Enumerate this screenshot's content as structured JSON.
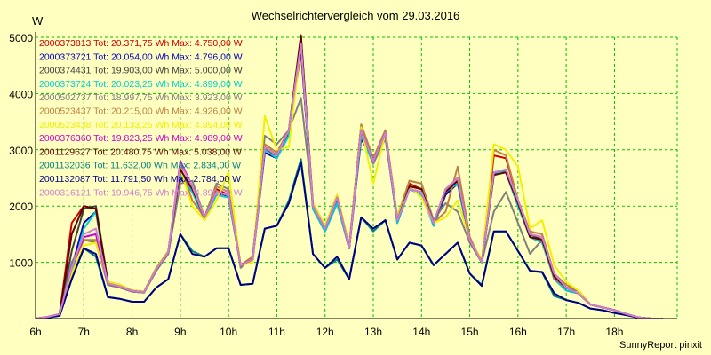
{
  "chart_data": {
    "type": "line",
    "title": "Wechselrichtervergleich vom 29.03.2016",
    "ylabel": "W",
    "xlabel": "",
    "ylim": [
      0,
      5000
    ],
    "xlim": [
      6,
      19.3
    ],
    "grid": true,
    "legend_position": "top-left",
    "y_ticks": [
      1000,
      2000,
      3000,
      4000,
      5000
    ],
    "x_ticks": [
      {
        "value": 6,
        "label": "6h"
      },
      {
        "value": 7,
        "label": "7h"
      },
      {
        "value": 8,
        "label": "8h"
      },
      {
        "value": 9,
        "label": "9h"
      },
      {
        "value": 10,
        "label": "10h"
      },
      {
        "value": 11,
        "label": "11h"
      },
      {
        "value": 12,
        "label": "12h"
      },
      {
        "value": 13,
        "label": "13h"
      },
      {
        "value": 14,
        "label": "14h"
      },
      {
        "value": 15,
        "label": "15h"
      },
      {
        "value": 16,
        "label": "16h"
      },
      {
        "value": 17,
        "label": "17h"
      },
      {
        "value": 18,
        "label": "18h"
      }
    ],
    "x": [
      6,
      6.25,
      6.5,
      6.75,
      7,
      7.25,
      7.5,
      7.75,
      8,
      8.25,
      8.5,
      8.75,
      9,
      9.25,
      9.5,
      9.75,
      10,
      10.25,
      10.5,
      10.75,
      11,
      11.25,
      11.5,
      11.75,
      12,
      12.25,
      12.5,
      12.75,
      13,
      13.25,
      13.5,
      13.75,
      14,
      14.25,
      14.5,
      14.75,
      15,
      15.25,
      15.5,
      15.75,
      16,
      16.25,
      16.5,
      16.75,
      17,
      17.25,
      17.5,
      17.75,
      18,
      18.25,
      18.5,
      18.75,
      19
    ],
    "series": [
      {
        "id": "s1",
        "name": "2000373813 Tot: 20.371,75 Wh Max: 4.750,00 W",
        "color": "#d00000",
        "values": [
          0,
          30,
          80,
          1700,
          2000,
          1950,
          600,
          550,
          480,
          480,
          900,
          1200,
          2600,
          2300,
          1800,
          2300,
          2200,
          950,
          1100,
          3000,
          2900,
          3300,
          4750,
          2000,
          1600,
          2100,
          1250,
          3350,
          2800,
          3300,
          1750,
          2400,
          2300,
          1700,
          2300,
          2500,
          1400,
          1000,
          2900,
          2850,
          2100,
          1500,
          1400,
          700,
          550,
          500,
          250,
          200,
          150,
          80,
          20,
          0,
          0
        ]
      },
      {
        "id": "s2",
        "name": "2000373721 Tot: 20.054,00 Wh Max: 4.796,00 W",
        "color": "#0000c0",
        "values": [
          0,
          20,
          60,
          900,
          1700,
          1900,
          650,
          600,
          500,
          480,
          850,
          1150,
          2500,
          2250,
          1800,
          2250,
          2150,
          950,
          1050,
          2950,
          2850,
          3300,
          4796,
          1950,
          1550,
          2050,
          1250,
          3200,
          2800,
          3250,
          1700,
          2300,
          2250,
          1650,
          2200,
          2400,
          1350,
          1000,
          2600,
          2600,
          2000,
          1450,
          1350,
          750,
          500,
          450,
          250,
          200,
          150,
          80,
          20,
          0,
          0
        ]
      },
      {
        "id": "s3",
        "name": "2000374431 Tot: 19.903,00 Wh Max: 5.000,00 W",
        "color": "#404040",
        "values": [
          0,
          20,
          70,
          1200,
          1950,
          2000,
          650,
          580,
          500,
          470,
          850,
          1150,
          2600,
          2300,
          1800,
          2250,
          2200,
          950,
          1050,
          3050,
          2900,
          3300,
          5000,
          2000,
          1600,
          2100,
          1250,
          3300,
          2800,
          3300,
          1750,
          2300,
          2250,
          1700,
          2250,
          2450,
          1400,
          1000,
          2550,
          2650,
          2050,
          1500,
          1400,
          750,
          550,
          500,
          250,
          200,
          150,
          80,
          20,
          0,
          0
        ]
      },
      {
        "id": "s4",
        "name": "2000373724 Tot: 20.023,25 Wh Max: 4.899,00 W",
        "color": "#00d0d0",
        "values": [
          0,
          15,
          50,
          800,
          1600,
          1900,
          600,
          560,
          480,
          460,
          850,
          1150,
          2550,
          2250,
          1750,
          2200,
          2150,
          950,
          1050,
          3000,
          2850,
          3250,
          4899,
          1950,
          1550,
          2050,
          1250,
          3250,
          2750,
          3250,
          1700,
          2300,
          2200,
          1650,
          2250,
          2400,
          1350,
          1000,
          2600,
          2600,
          2000,
          1450,
          1350,
          700,
          500,
          450,
          250,
          200,
          150,
          80,
          20,
          0,
          0
        ]
      },
      {
        "id": "s5",
        "name": "2000502737 Tot: 18.997,75 Wh Max: 3.923,00 W",
        "color": "#808080",
        "values": [
          0,
          30,
          70,
          1000,
          1400,
          1350,
          600,
          550,
          480,
          460,
          850,
          1150,
          2400,
          2450,
          1800,
          2400,
          2300,
          900,
          1100,
          3250,
          3100,
          3350,
          3923,
          2050,
          1650,
          2150,
          1300,
          3450,
          2750,
          3200,
          1800,
          2450,
          2400,
          1750,
          2050,
          1900,
          1350,
          1000,
          1900,
          2250,
          1700,
          1150,
          1400,
          700,
          550,
          500,
          250,
          200,
          150,
          80,
          20,
          0,
          0
        ]
      },
      {
        "id": "s6",
        "name": "2000523437 Tot: 20.215,00 Wh Max: 4.926,00 W",
        "color": "#c08040",
        "values": [
          0,
          25,
          80,
          900,
          1400,
          1400,
          650,
          600,
          500,
          480,
          900,
          1200,
          2700,
          2100,
          1800,
          2350,
          2250,
          950,
          1100,
          3100,
          2950,
          3350,
          4926,
          2050,
          1650,
          2200,
          1300,
          3450,
          2850,
          3350,
          1800,
          2450,
          2400,
          1700,
          1900,
          2700,
          1450,
          1000,
          3000,
          2900,
          2100,
          1550,
          1500,
          800,
          600,
          500,
          250,
          200,
          150,
          80,
          20,
          0,
          0
        ]
      },
      {
        "id": "s7",
        "name": "2000523438 Tot: 20.133,25 Wh Max: 4.894,00 W",
        "color": "#f0f000",
        "values": [
          0,
          25,
          70,
          800,
          1300,
          1350,
          650,
          600,
          500,
          480,
          900,
          1200,
          2650,
          2000,
          1750,
          2100,
          2600,
          950,
          1000,
          3600,
          3000,
          3050,
          4894,
          2050,
          1650,
          2200,
          1300,
          3400,
          2400,
          3300,
          1800,
          2350,
          2150,
          1700,
          1800,
          2100,
          1400,
          1050,
          3100,
          3000,
          2700,
          1600,
          1750,
          950,
          650,
          500,
          250,
          200,
          150,
          80,
          20,
          0,
          0
        ]
      },
      {
        "id": "s8",
        "name": "2000376360 Tot: 19.823,25 Wh Max: 4.989,00 W",
        "color": "#d000d0",
        "values": [
          0,
          30,
          80,
          900,
          1450,
          1500,
          620,
          570,
          490,
          470,
          880,
          1180,
          2800,
          2350,
          1800,
          2250,
          2200,
          950,
          1050,
          3050,
          2900,
          3350,
          4989,
          2000,
          1600,
          2150,
          1250,
          3350,
          2800,
          3300,
          1750,
          2300,
          2250,
          1700,
          2300,
          2500,
          1400,
          1000,
          2600,
          2650,
          2100,
          1500,
          1450,
          800,
          550,
          450,
          250,
          200,
          150,
          80,
          20,
          0,
          0
        ]
      },
      {
        "id": "s9",
        "name": "2001129627 Tot: 20.480,75 Wh Max: 5.038,00 W",
        "color": "#600000",
        "values": [
          0,
          30,
          80,
          1500,
          2000,
          1950,
          620,
          570,
          490,
          470,
          880,
          1180,
          2650,
          2300,
          1800,
          2250,
          2200,
          950,
          1050,
          3050,
          2900,
          3350,
          5038,
          2000,
          1600,
          2150,
          1250,
          3350,
          2800,
          3300,
          1750,
          2350,
          2300,
          1700,
          2250,
          2450,
          1400,
          1000,
          2550,
          2600,
          2050,
          1450,
          1400,
          750,
          550,
          450,
          250,
          200,
          150,
          80,
          20,
          0,
          0
        ]
      },
      {
        "id": "s10",
        "name": "2001132036 Tot: 11.632,00 Wh Max: 2.834,00 W",
        "color": "#008080",
        "values": [
          0,
          20,
          50,
          700,
          1250,
          1100,
          380,
          350,
          300,
          300,
          550,
          700,
          1500,
          1200,
          1100,
          1250,
          1250,
          600,
          620,
          1600,
          1650,
          2100,
          2834,
          1150,
          900,
          1050,
          700,
          1800,
          1550,
          1750,
          1050,
          1350,
          1300,
          950,
          1150,
          1350,
          800,
          600,
          1550,
          1550,
          1200,
          850,
          820,
          400,
          330,
          280,
          180,
          150,
          100,
          60,
          15,
          0,
          0
        ]
      },
      {
        "id": "s11",
        "name": "2001132087 Tot: 11.791,50 Wh Max: 2.784,00 W",
        "color": "#000080",
        "values": [
          0,
          20,
          50,
          700,
          1250,
          1150,
          380,
          350,
          300,
          300,
          550,
          700,
          1500,
          1150,
          1100,
          1250,
          1250,
          600,
          620,
          1600,
          1650,
          2050,
          2784,
          1150,
          900,
          1100,
          700,
          1800,
          1600,
          1750,
          1050,
          1350,
          1300,
          950,
          1150,
          1350,
          800,
          580,
          1550,
          1550,
          1200,
          850,
          830,
          450,
          330,
          280,
          180,
          150,
          100,
          60,
          15,
          0,
          0
        ]
      },
      {
        "id": "s12",
        "name": "2000316121 Tot: 19.946,75 Wh Max: 4.890,00 W",
        "color": "#d080d0",
        "values": [
          0,
          30,
          80,
          900,
          1500,
          1600,
          620,
          570,
          490,
          470,
          880,
          1180,
          2750,
          2350,
          1800,
          2250,
          2200,
          950,
          1050,
          3050,
          2900,
          3350,
          4890,
          2000,
          1600,
          2150,
          1250,
          3350,
          2800,
          3300,
          1750,
          2300,
          2250,
          1700,
          2300,
          2500,
          1400,
          1000,
          2600,
          2650,
          2100,
          1500,
          1450,
          800,
          550,
          450,
          250,
          200,
          150,
          80,
          20,
          0,
          0
        ]
      }
    ]
  },
  "footer": {
    "credit": "SunnyReport pinxit"
  }
}
